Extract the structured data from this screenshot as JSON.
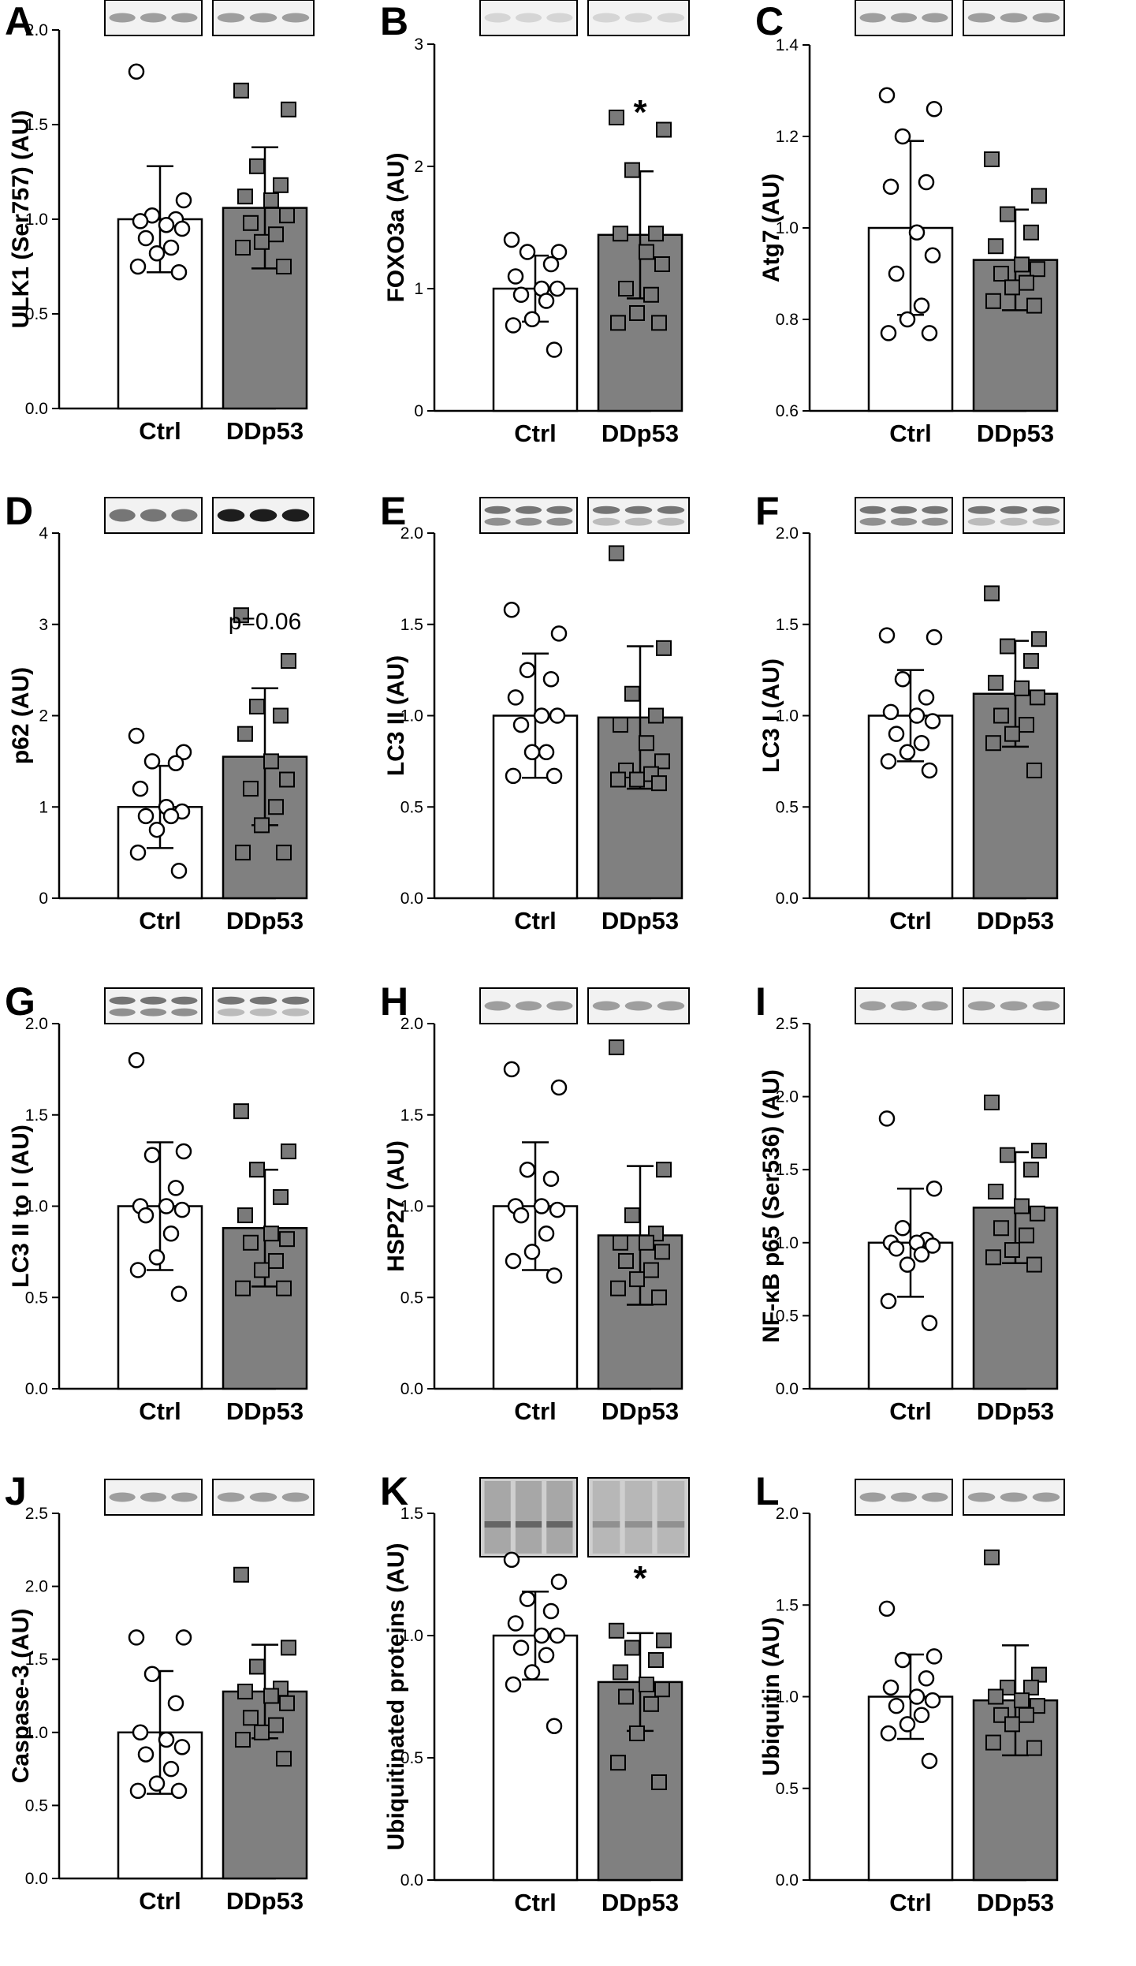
{
  "figure": {
    "group_labels": [
      "Ctrl",
      "DDp53"
    ],
    "colors": {
      "ctrl_fill": "#ffffff",
      "ddp53_fill": "#808080",
      "ink": "#000000"
    }
  },
  "chart_data": [
    {
      "type": "bar",
      "panel": "A",
      "ylabel": "ULK1 (Ser757) (AU)",
      "ylim": [
        0,
        2.0
      ],
      "yticks": [
        "0.0",
        "0.5",
        "1.0",
        "1.5",
        "2.0"
      ],
      "blot": "light",
      "categories": [
        "Ctrl",
        "DDp53"
      ],
      "values": [
        1.0,
        1.06
      ],
      "sd": [
        0.28,
        0.32
      ],
      "annotation": "",
      "points": [
        [
          1.78,
          1.1,
          1.02,
          1.0,
          0.99,
          0.97,
          0.95,
          0.9,
          0.85,
          0.82,
          0.75,
          0.72
        ],
        [
          1.68,
          1.58,
          1.28,
          1.18,
          1.12,
          1.1,
          1.02,
          0.98,
          0.92,
          0.88,
          0.85,
          0.75
        ]
      ]
    },
    {
      "type": "bar",
      "panel": "B",
      "ylabel": "FOXO3a (AU)",
      "ylim": [
        0,
        3
      ],
      "yticks": [
        "0",
        "1",
        "2",
        "3"
      ],
      "blot": "faint",
      "categories": [
        "Ctrl",
        "DDp53"
      ],
      "values": [
        1.0,
        1.44
      ],
      "sd": [
        0.27,
        0.52
      ],
      "annotation": "*",
      "points": [
        [
          1.4,
          1.3,
          1.3,
          1.2,
          1.1,
          1.0,
          1.0,
          0.95,
          0.9,
          0.75,
          0.7,
          0.5
        ],
        [
          2.4,
          2.3,
          1.97,
          1.45,
          1.45,
          1.3,
          1.2,
          1.0,
          0.95,
          0.8,
          0.72,
          0.72
        ]
      ]
    },
    {
      "type": "bar",
      "panel": "C",
      "ylabel": "Atg7 (AU)",
      "ylim": [
        0.6,
        1.4
      ],
      "yticks": [
        "0.6",
        "0.8",
        "1.0",
        "1.2",
        "1.4"
      ],
      "blot": "light",
      "categories": [
        "Ctrl",
        "DDp53"
      ],
      "values": [
        1.0,
        0.93
      ],
      "sd": [
        0.19,
        0.11
      ],
      "annotation": "",
      "points": [
        [
          1.29,
          1.26,
          1.2,
          1.1,
          1.09,
          0.99,
          0.94,
          0.9,
          0.83,
          0.8,
          0.77,
          0.77
        ],
        [
          1.15,
          1.07,
          1.03,
          0.99,
          0.96,
          0.92,
          0.91,
          0.9,
          0.88,
          0.87,
          0.84,
          0.83
        ]
      ]
    },
    {
      "type": "bar",
      "panel": "D",
      "ylabel": "p62 (AU)",
      "ylim": [
        0,
        4
      ],
      "yticks": [
        "0",
        "1",
        "2",
        "3",
        "4"
      ],
      "blot": "dark",
      "categories": [
        "Ctrl",
        "DDp53"
      ],
      "values": [
        1.0,
        1.55
      ],
      "sd": [
        0.45,
        0.75
      ],
      "annotation": "p=0.06",
      "points": [
        [
          1.78,
          1.6,
          1.5,
          1.48,
          1.2,
          1.0,
          0.95,
          0.9,
          0.9,
          0.75,
          0.5,
          0.3
        ],
        [
          3.1,
          2.6,
          2.1,
          2.0,
          1.8,
          1.5,
          1.3,
          1.2,
          1.0,
          0.8,
          0.5,
          0.5
        ]
      ]
    },
    {
      "type": "bar",
      "panel": "E",
      "ylabel": "LC3 II (AU)",
      "ylim": [
        0,
        2.0
      ],
      "yticks": [
        "0.0",
        "0.5",
        "1.0",
        "1.5",
        "2.0"
      ],
      "blot": "double",
      "categories": [
        "Ctrl",
        "DDp53"
      ],
      "values": [
        1.0,
        0.99
      ],
      "sd": [
        0.34,
        0.39
      ],
      "annotation": "",
      "points": [
        [
          1.58,
          1.45,
          1.25,
          1.2,
          1.1,
          1.0,
          1.0,
          0.95,
          0.8,
          0.8,
          0.67,
          0.67
        ],
        [
          1.89,
          1.37,
          1.12,
          1.0,
          0.95,
          0.85,
          0.75,
          0.7,
          0.68,
          0.65,
          0.65,
          0.63
        ]
      ]
    },
    {
      "type": "bar",
      "panel": "F",
      "ylabel": "LC3 I (AU)",
      "ylim": [
        0,
        2.0
      ],
      "yticks": [
        "0.0",
        "0.5",
        "1.0",
        "1.5",
        "2.0"
      ],
      "blot": "double",
      "categories": [
        "Ctrl",
        "DDp53"
      ],
      "values": [
        1.0,
        1.12
      ],
      "sd": [
        0.25,
        0.29
      ],
      "annotation": "",
      "points": [
        [
          1.44,
          1.43,
          1.2,
          1.1,
          1.02,
          1.0,
          0.97,
          0.9,
          0.85,
          0.8,
          0.75,
          0.7
        ],
        [
          1.67,
          1.42,
          1.38,
          1.3,
          1.18,
          1.15,
          1.1,
          1.0,
          0.95,
          0.9,
          0.85,
          0.7
        ]
      ]
    },
    {
      "type": "bar",
      "panel": "G",
      "ylabel": "LC3 II to I (AU)",
      "ylim": [
        0,
        2.0
      ],
      "yticks": [
        "0.0",
        "0.5",
        "1.0",
        "1.5",
        "2.0"
      ],
      "blot": "double",
      "categories": [
        "Ctrl",
        "DDp53"
      ],
      "values": [
        1.0,
        0.88
      ],
      "sd": [
        0.35,
        0.32
      ],
      "annotation": "",
      "points": [
        [
          1.8,
          1.3,
          1.28,
          1.1,
          1.0,
          1.0,
          0.98,
          0.95,
          0.85,
          0.72,
          0.65,
          0.52
        ],
        [
          1.52,
          1.3,
          1.2,
          1.05,
          0.95,
          0.85,
          0.82,
          0.8,
          0.7,
          0.65,
          0.55,
          0.55
        ]
      ]
    },
    {
      "type": "bar",
      "panel": "H",
      "ylabel": "HSP27 (AU)",
      "ylim": [
        0,
        2.0
      ],
      "yticks": [
        "0.0",
        "0.5",
        "1.0",
        "1.5",
        "2.0"
      ],
      "blot": "light",
      "categories": [
        "Ctrl",
        "DDp53"
      ],
      "values": [
        1.0,
        0.84
      ],
      "sd": [
        0.35,
        0.38
      ],
      "annotation": "",
      "points": [
        [
          1.75,
          1.65,
          1.2,
          1.15,
          1.0,
          1.0,
          0.98,
          0.95,
          0.85,
          0.75,
          0.7,
          0.62
        ],
        [
          1.87,
          1.2,
          0.95,
          0.85,
          0.8,
          0.8,
          0.75,
          0.7,
          0.65,
          0.6,
          0.55,
          0.5
        ]
      ]
    },
    {
      "type": "bar",
      "panel": "I",
      "ylabel": "NF-κB p65 (Ser536) (AU)",
      "ylim": [
        0,
        2.5
      ],
      "yticks": [
        "0.0",
        "0.5",
        "1.0",
        "1.5",
        "2.0",
        "2.5"
      ],
      "blot": "light",
      "categories": [
        "Ctrl",
        "DDp53"
      ],
      "values": [
        1.0,
        1.24
      ],
      "sd": [
        0.37,
        0.38
      ],
      "annotation": "",
      "points": [
        [
          1.85,
          1.37,
          1.1,
          1.02,
          1.0,
          1.0,
          0.98,
          0.96,
          0.92,
          0.85,
          0.6,
          0.45
        ],
        [
          1.96,
          1.63,
          1.6,
          1.5,
          1.35,
          1.25,
          1.2,
          1.1,
          1.05,
          0.95,
          0.9,
          0.85
        ]
      ]
    },
    {
      "type": "bar",
      "panel": "J",
      "ylabel": "Caspase-3 (AU)",
      "ylim": [
        0,
        2.5
      ],
      "yticks": [
        "0.0",
        "0.5",
        "1.0",
        "1.5",
        "2.0",
        "2.5"
      ],
      "blot": "light",
      "categories": [
        "Ctrl",
        "DDp53"
      ],
      "values": [
        1.0,
        1.28
      ],
      "sd": [
        0.42,
        0.32
      ],
      "annotation": "",
      "points": [
        [
          1.65,
          1.65,
          1.4,
          1.2,
          1.0,
          0.95,
          0.9,
          0.85,
          0.75,
          0.65,
          0.6,
          0.6
        ],
        [
          2.08,
          1.58,
          1.45,
          1.3,
          1.28,
          1.25,
          1.2,
          1.1,
          1.05,
          1.0,
          0.95,
          0.82
        ]
      ]
    },
    {
      "type": "bar",
      "panel": "K",
      "ylabel": "Ubiquitinated proteins (AU)",
      "ylim": [
        0,
        1.5
      ],
      "yticks": [
        "0.0",
        "0.5",
        "1.0",
        "1.5"
      ],
      "blot": "smear",
      "categories": [
        "Ctrl",
        "DDp53"
      ],
      "values": [
        1.0,
        0.81
      ],
      "sd": [
        0.18,
        0.2
      ],
      "annotation": "*",
      "points": [
        [
          1.31,
          1.22,
          1.15,
          1.1,
          1.05,
          1.0,
          1.0,
          0.95,
          0.92,
          0.85,
          0.8,
          0.63
        ],
        [
          1.02,
          0.98,
          0.95,
          0.9,
          0.85,
          0.8,
          0.78,
          0.75,
          0.72,
          0.6,
          0.48,
          0.4
        ]
      ]
    },
    {
      "type": "bar",
      "panel": "L",
      "ylabel": "Ubiquitin (AU)",
      "ylim": [
        0,
        2.0
      ],
      "yticks": [
        "0.0",
        "0.5",
        "1.0",
        "1.5",
        "2.0"
      ],
      "blot": "single",
      "categories": [
        "Ctrl",
        "DDp53"
      ],
      "values": [
        1.0,
        0.98
      ],
      "sd": [
        0.23,
        0.3
      ],
      "annotation": "",
      "points": [
        [
          1.48,
          1.22,
          1.2,
          1.1,
          1.05,
          1.0,
          0.98,
          0.95,
          0.9,
          0.85,
          0.8,
          0.65
        ],
        [
          1.76,
          1.12,
          1.05,
          1.05,
          1.0,
          0.98,
          0.95,
          0.9,
          0.9,
          0.85,
          0.75,
          0.72
        ]
      ]
    }
  ]
}
